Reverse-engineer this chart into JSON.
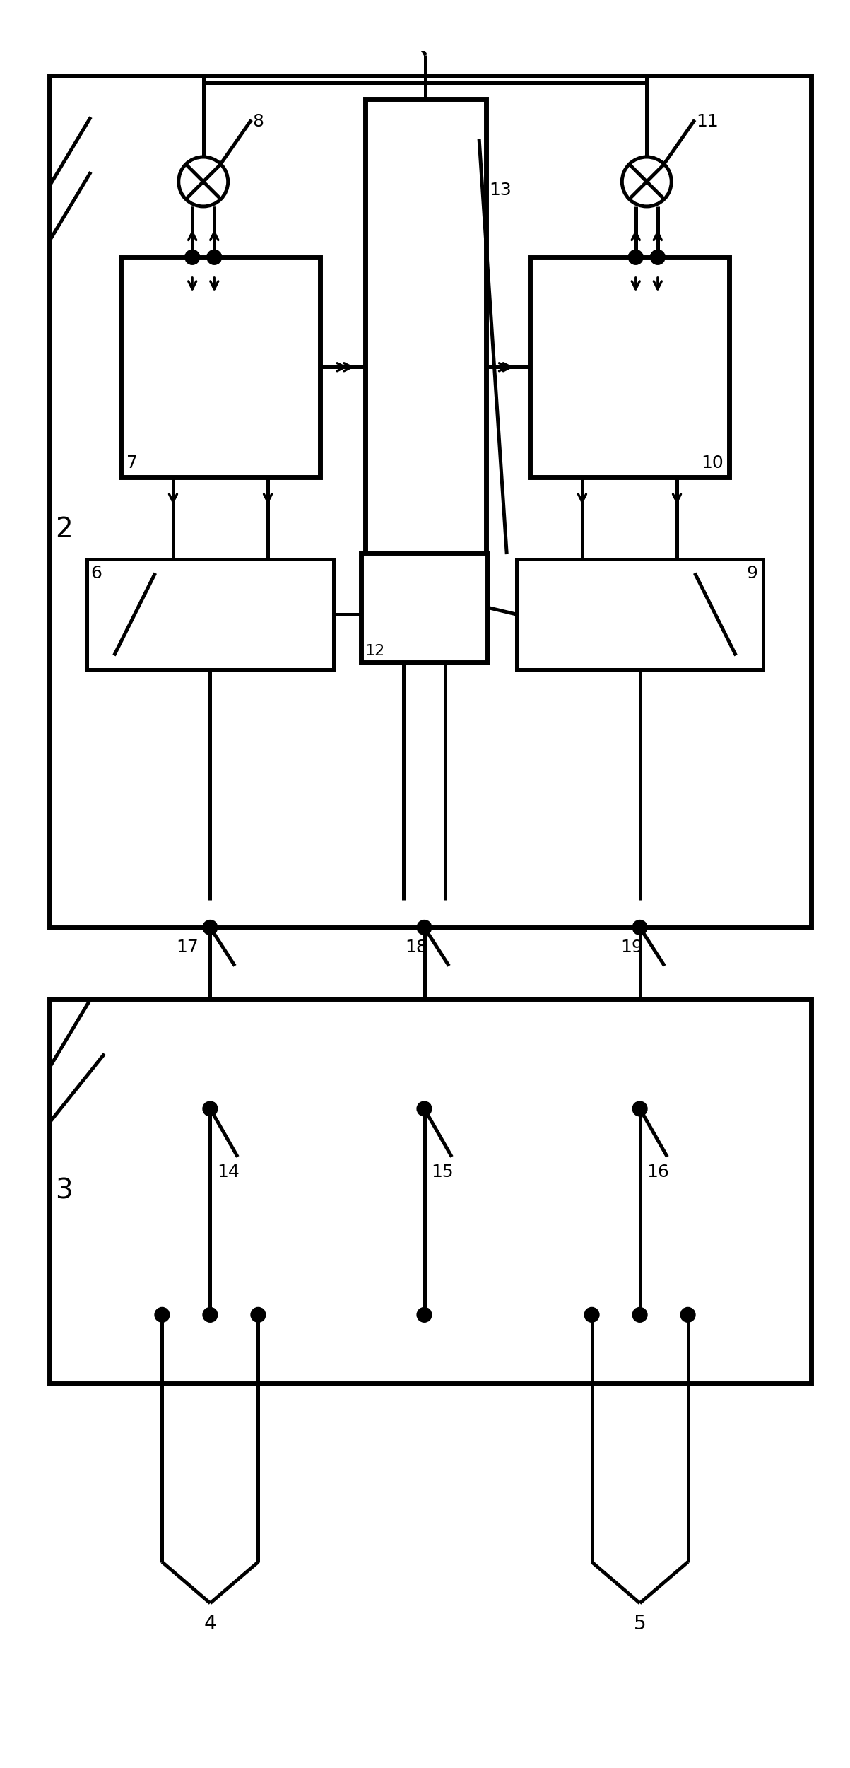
{
  "bg_color": "#ffffff",
  "lw": 1.8,
  "tlw": 2.5,
  "figsize": [
    6.015,
    12.505
  ],
  "dpi": 200
}
